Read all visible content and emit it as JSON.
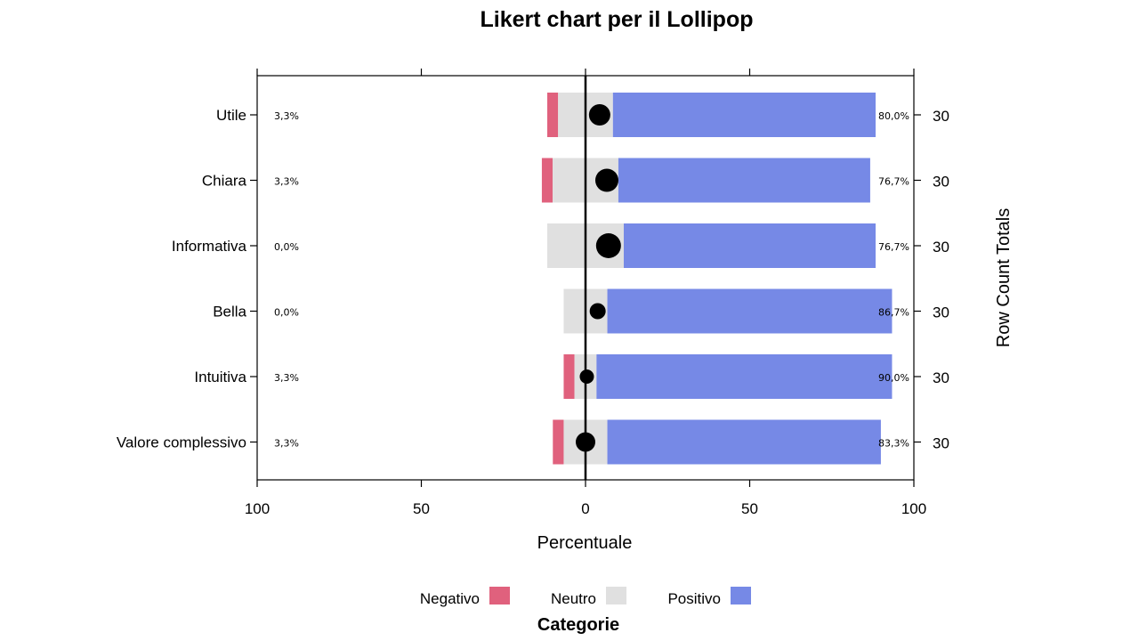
{
  "chart_data": {
    "type": "bar",
    "title": "Likert chart per il Lollipop",
    "xlabel": "Percentuale",
    "right_axis_label": "Row Count Totals",
    "xlim": [
      -100,
      100
    ],
    "x_ticks": [
      -100,
      -50,
      0,
      50,
      100
    ],
    "x_tick_labels": [
      "100",
      "50",
      "0",
      "50",
      "100"
    ],
    "categories": [
      "Utile",
      "Chiara",
      "Informativa",
      "Bella",
      "Intuitiva",
      "Valore complessivo"
    ],
    "series": [
      {
        "name": "Negativo",
        "color": "#E0617D",
        "values": [
          3.3,
          3.3,
          0.0,
          0.0,
          3.3,
          3.3
        ]
      },
      {
        "name": "Neutro",
        "color": "#E0E0E0",
        "values": [
          16.7,
          20.0,
          23.3,
          13.3,
          6.7,
          13.3
        ]
      },
      {
        "name": "Positivo",
        "color": "#7689E6",
        "values": [
          80.0,
          76.7,
          76.7,
          86.7,
          90.0,
          83.3
        ]
      }
    ],
    "lollipop": {
      "values": [
        4.3,
        6.5,
        7.0,
        3.7,
        0.4,
        0.0
      ],
      "sizes": [
        12,
        13,
        14,
        9,
        8,
        11
      ]
    },
    "left_labels": [
      "3,3%",
      "3,3%",
      "0,0%",
      "0,0%",
      "3,3%",
      "3,3%"
    ],
    "right_labels": [
      "80,0%",
      "76,7%",
      "76,7%",
      "86,7%",
      "90,0%",
      "83,3%"
    ],
    "row_totals": [
      "30",
      "30",
      "30",
      "30",
      "30",
      "30"
    ],
    "legend": {
      "title": "Categorie",
      "position": "bottom",
      "entries": [
        "Negativo",
        "Neutro",
        "Positivo"
      ]
    }
  }
}
